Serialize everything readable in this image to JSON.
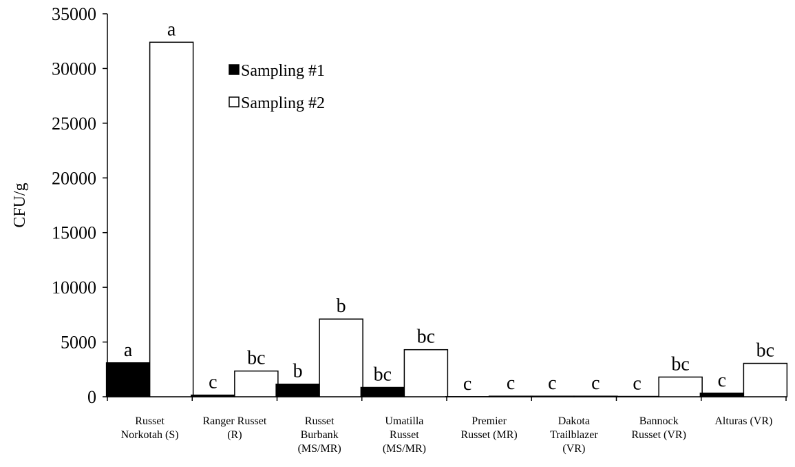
{
  "chart_data": {
    "type": "bar",
    "y_label": "CFU/g",
    "categories": [
      "Russet\nNorkotah (S)",
      "Ranger Russet\n(R)",
      "Russet\nBurbank\n(MS/MR)",
      "Umatilla\nRusset\n(MS/MR)",
      "Premier\nRusset (MR)",
      "Dakota\nTrailblazer\n(VR)",
      "Bannock\nRusset (VR)",
      "Alturas (VR)"
    ],
    "series": [
      {
        "name": "Sampling #1",
        "color": "#000000",
        "values": [
          3100,
          150,
          1150,
          850,
          10,
          50,
          30,
          330
        ],
        "letters": [
          "a",
          "c",
          "b",
          "bc",
          "c",
          "c",
          "c",
          "c"
        ]
      },
      {
        "name": "Sampling #2",
        "color": "#ffffff",
        "values": [
          32400,
          2350,
          7100,
          4300,
          50,
          50,
          1800,
          3050
        ],
        "letters": [
          "a",
          "bc",
          "b",
          "bc",
          "c",
          "c",
          "bc",
          "bc"
        ]
      }
    ],
    "ylim": [
      0,
      35000
    ],
    "yticks": [
      0,
      5000,
      10000,
      15000,
      20000,
      25000,
      30000,
      35000
    ]
  }
}
